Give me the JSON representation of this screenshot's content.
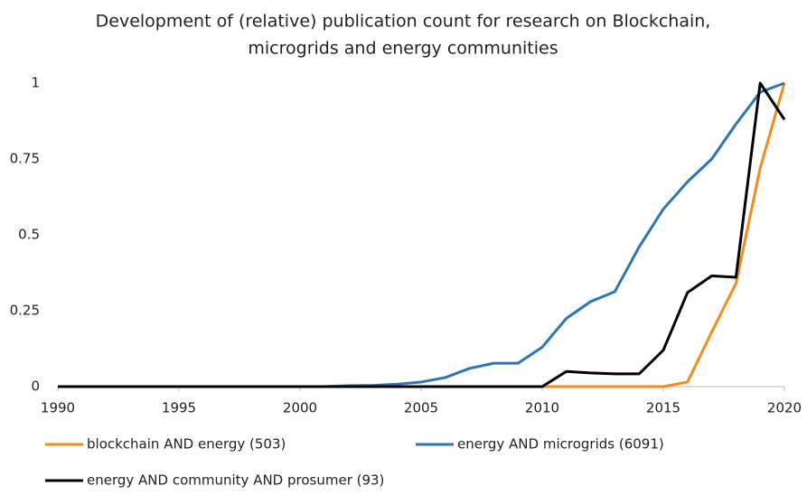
{
  "chart_data": {
    "type": "line",
    "title": [
      "Development of (relative) publication count for research on Blockchain,",
      "microgrids and energy communities"
    ],
    "x": [
      1990,
      1991,
      1992,
      1993,
      1994,
      1995,
      1996,
      1997,
      1998,
      1999,
      2000,
      2001,
      2002,
      2003,
      2004,
      2005,
      2006,
      2007,
      2008,
      2009,
      2010,
      2011,
      2012,
      2013,
      2014,
      2015,
      2016,
      2017,
      2018,
      2019,
      2020
    ],
    "series": [
      {
        "name": "blockchain AND energy (503)",
        "color": "#f28c1e",
        "values": [
          0,
          0,
          0,
          0,
          0,
          0,
          0,
          0,
          0,
          0,
          0,
          0,
          0,
          0,
          0,
          0,
          0,
          0,
          0,
          0,
          0,
          0,
          0,
          0,
          0,
          0,
          0.015,
          0.18,
          0.34,
          0.72,
          1
        ]
      },
      {
        "name": "energy AND microgrids (6091)",
        "color": "#2e75b6",
        "values": [
          0,
          0,
          0,
          0,
          0,
          0,
          0,
          0,
          0,
          0,
          0,
          0,
          0.003,
          0.004,
          0.008,
          0.015,
          0.03,
          0.06,
          0.077,
          0.077,
          0.13,
          0.225,
          0.28,
          0.313,
          0.46,
          0.585,
          0.675,
          0.75,
          0.865,
          0.97,
          1
        ]
      },
      {
        "name": "energy AND community AND prosumer (93)",
        "color": "#000000",
        "values": [
          0,
          0,
          0,
          0,
          0,
          0,
          0,
          0,
          0,
          0,
          0,
          0,
          0,
          0,
          0,
          0,
          0,
          0,
          0,
          0,
          0,
          0.05,
          0.045,
          0.042,
          0.042,
          0.12,
          0.31,
          0.365,
          0.36,
          1,
          0.88
        ]
      }
    ],
    "xlim": [
      1990,
      2020
    ],
    "xticks": [
      1990,
      1995,
      2000,
      2005,
      2010,
      2015,
      2020
    ],
    "ylim": [
      0,
      1
    ],
    "yticks": [
      0,
      0.25,
      0.5,
      0.75,
      1
    ],
    "grid": false
  }
}
